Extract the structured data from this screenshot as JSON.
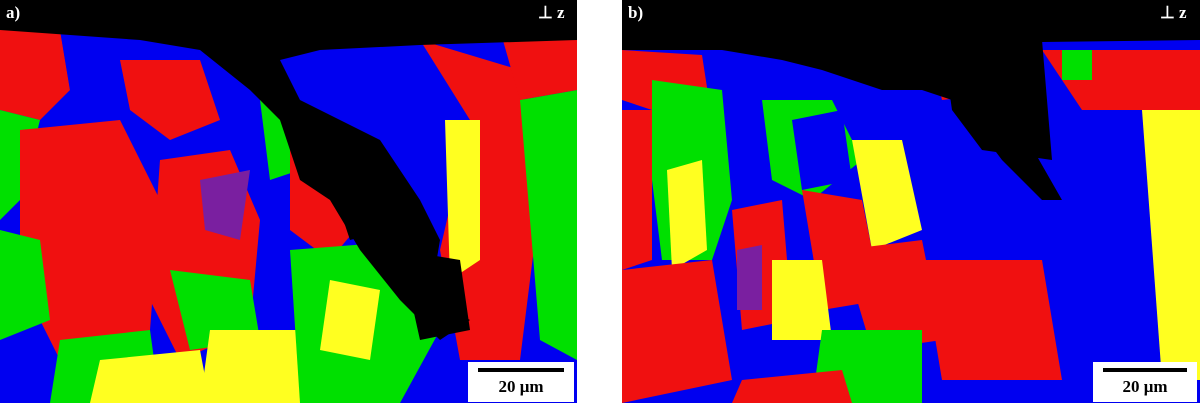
{
  "panels": [
    {
      "label": "a)",
      "direction": "⊥ z",
      "scale_bar": "20 μm"
    },
    {
      "label": "b)",
      "direction": "⊥ z",
      "scale_bar": "20 μm"
    }
  ]
}
